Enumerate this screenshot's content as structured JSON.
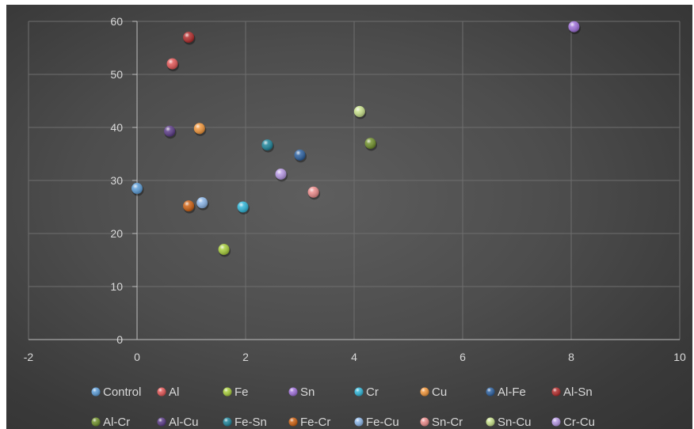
{
  "chart_data": {
    "type": "scatter",
    "title": "",
    "xlabel": "",
    "ylabel": "",
    "xlim": [
      -2,
      10
    ],
    "ylim": [
      0,
      60
    ],
    "x_ticks": [
      -2,
      0,
      2,
      4,
      6,
      8,
      10
    ],
    "y_ticks": [
      0,
      10,
      20,
      30,
      40,
      50,
      60
    ],
    "grid": true,
    "legend_position": "bottom",
    "series": [
      {
        "name": "Control",
        "color": "#5b9bd5",
        "x": [
          0.0
        ],
        "y": [
          28.5
        ]
      },
      {
        "name": "Al",
        "color": "#e05555",
        "x": [
          0.65
        ],
        "y": [
          52.0
        ]
      },
      {
        "name": "Fe",
        "color": "#a6cc3a",
        "x": [
          1.6
        ],
        "y": [
          17.0
        ]
      },
      {
        "name": "Sn",
        "color": "#9e6fd8",
        "x": [
          8.05
        ],
        "y": [
          59.0
        ]
      },
      {
        "name": "Cr",
        "color": "#2fb4d6",
        "x": [
          1.95
        ],
        "y": [
          25.0
        ]
      },
      {
        "name": "Cu",
        "color": "#f0953a",
        "x": [
          1.15
        ],
        "y": [
          39.8
        ]
      },
      {
        "name": "Al-Fe",
        "color": "#2b5f9e",
        "x": [
          3.0
        ],
        "y": [
          34.8
        ]
      },
      {
        "name": "Al-Sn",
        "color": "#b02a2a",
        "x": [
          0.95
        ],
        "y": [
          57.0
        ]
      },
      {
        "name": "Al-Cr",
        "color": "#6f8f2a",
        "x": [
          4.3
        ],
        "y": [
          37.0
        ]
      },
      {
        "name": "Al-Cu",
        "color": "#5a3a86",
        "x": [
          0.6
        ],
        "y": [
          39.3
        ]
      },
      {
        "name": "Fe-Sn",
        "color": "#1d8399",
        "x": [
          2.4
        ],
        "y": [
          36.7
        ]
      },
      {
        "name": "Fe-Cr",
        "color": "#cc6011",
        "x": [
          0.95
        ],
        "y": [
          25.2
        ]
      },
      {
        "name": "Fe-Cu",
        "color": "#8ab4e6",
        "x": [
          1.2
        ],
        "y": [
          25.8
        ]
      },
      {
        "name": "Sn-Cr",
        "color": "#ea8a8a",
        "x": [
          3.25
        ],
        "y": [
          27.8
        ]
      },
      {
        "name": "Sn-Cu",
        "color": "#c7e08a",
        "x": [
          4.1
        ],
        "y": [
          43.0
        ]
      },
      {
        "name": "Cr-Cu",
        "color": "#b597e2",
        "x": [
          2.65
        ],
        "y": [
          31.2
        ]
      }
    ]
  }
}
